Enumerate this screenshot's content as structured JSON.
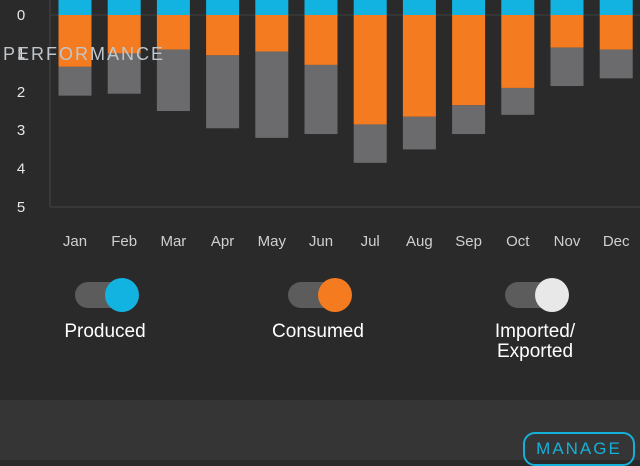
{
  "chart_data": {
    "type": "bar",
    "stacked": true,
    "categories": [
      "Jan",
      "Feb",
      "Mar",
      "Apr",
      "May",
      "Jun",
      "Jul",
      "Aug",
      "Sep",
      "Oct",
      "Nov",
      "Dec"
    ],
    "y_ticks": [
      "0",
      "1",
      "2",
      "3",
      "4",
      "5"
    ],
    "ylim": [
      -0.5,
      5
    ],
    "series": [
      {
        "name": "Produced",
        "color": "#12b3e0",
        "values": [
          -0.5,
          -0.5,
          -0.5,
          -0.5,
          -0.5,
          -0.5,
          -0.5,
          -0.5,
          -0.5,
          -0.5,
          -0.5,
          -0.5
        ]
      },
      {
        "name": "Consumed",
        "color": "#f47b20",
        "values": [
          1.35,
          1.0,
          0.9,
          1.05,
          0.95,
          1.3,
          2.85,
          2.65,
          2.35,
          1.9,
          0.85,
          0.9
        ]
      },
      {
        "name": "Imported/ Exported",
        "color": "#6b6b6e",
        "values": [
          0.75,
          1.05,
          1.6,
          1.9,
          2.25,
          1.8,
          1.0,
          0.85,
          0.75,
          0.7,
          1.0,
          0.75
        ]
      }
    ]
  },
  "toggles": [
    {
      "label": "Produced",
      "color": "#12b3e0",
      "on": true
    },
    {
      "label": "Consumed",
      "color": "#f47b20",
      "on": true
    },
    {
      "label_line1": "Imported/",
      "label_line2": "Exported",
      "color": "#e8e8e8",
      "on": true
    }
  ],
  "footer": {
    "title": "PERFORMANCE",
    "manage_label": "MANAGE"
  }
}
